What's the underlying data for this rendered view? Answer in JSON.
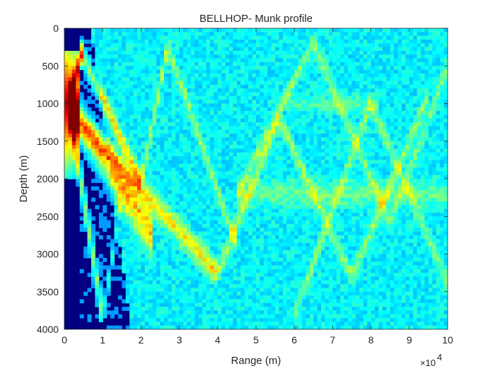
{
  "chart_data": {
    "type": "heatmap",
    "title": "BELLHOP- Munk profile",
    "xlabel": "Range (m)",
    "ylabel": "Depth (m)",
    "xlim": [
      0,
      100000
    ],
    "ylim": [
      0,
      4000
    ],
    "y_reversed": true,
    "x_tick_values": [
      0,
      10000,
      20000,
      30000,
      40000,
      50000,
      60000,
      70000,
      80000,
      90000,
      100000
    ],
    "x_tick_labels": [
      "0",
      "1",
      "2",
      "3",
      "4",
      "5",
      "6",
      "7",
      "8",
      "9",
      "10"
    ],
    "x_exponent_label": "×10",
    "x_exponent_power": "4",
    "y_tick_values": [
      0,
      500,
      1000,
      1500,
      2000,
      2500,
      3000,
      3500,
      4000
    ],
    "y_tick_labels": [
      "0",
      "500",
      "1000",
      "1500",
      "2000",
      "2500",
      "3000",
      "3500",
      "4000"
    ],
    "colormap": "jet",
    "source": {
      "range_m": 0,
      "depth_m": 1000
    },
    "background_color": "#000080",
    "features": [
      {
        "name": "direct-path",
        "range_start_m": 1000,
        "range_end_m": 5000,
        "depth_m": [
          950,
          280
        ],
        "relative_intensity": 0.9
      },
      {
        "name": "shallow-bundle-down",
        "range_start_m": 4000,
        "range_end_m": 20000,
        "depth_m": [
          280,
          2050
        ],
        "relative_intensity": 0.5
      },
      {
        "name": "main-down-bundle",
        "range_start_m": 1000,
        "range_end_m": 23000,
        "depth_m": [
          1000,
          2750
        ],
        "relative_intensity": 0.6
      },
      {
        "name": "deep-down-bundle",
        "range_start_m": 1000,
        "range_end_m": 40000,
        "depth_m": [
          1000,
          3250
        ],
        "relative_intensity": 0.45
      },
      {
        "name": "steep-down-bundle",
        "range_start_m": 1000,
        "range_end_m": 10000,
        "depth_m": [
          1000,
          3800
        ],
        "relative_intensity": 0.4
      },
      {
        "name": "upgoing-bundle",
        "range_start_m": 20000,
        "range_end_m": 27000,
        "depth_m": [
          2050,
          250
        ],
        "relative_intensity": 0.35
      },
      {
        "name": "convergence-band",
        "range_start_m": 45000,
        "range_end_m": 100000,
        "depth_m": [
          2200,
          2200
        ],
        "relative_intensity": 0.3
      },
      {
        "name": "upper-band",
        "range_start_m": 60000,
        "range_end_m": 80000,
        "depth_m": [
          1000,
          1000
        ],
        "relative_intensity": 0.3
      }
    ],
    "max_intensity_color": "#ff3000",
    "grid": false,
    "legend": "none"
  }
}
